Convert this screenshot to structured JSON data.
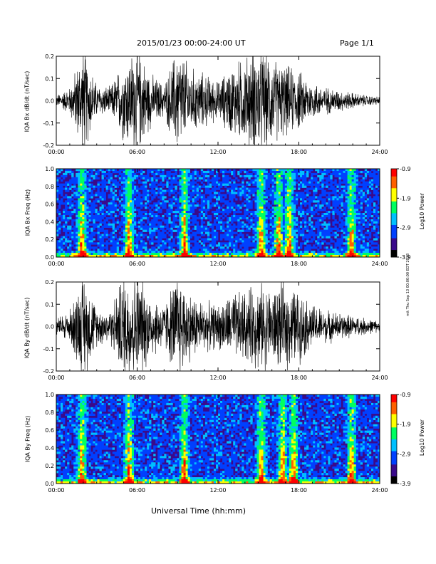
{
  "header": {
    "date_range": "2015/01/23  00:00-24:00 UT",
    "page": "Page 1/1"
  },
  "footer": {
    "xlabel": "Universal Time (hh:mm)",
    "side_note": "mit Thu Sep 13 00:00:00 EDT 2018"
  },
  "colors": {
    "trace": "#000000",
    "spectrogram_background": "#3a0a8a",
    "colormap": [
      "#000000",
      "#3a0a8a",
      "#0040ff",
      "#00c0ff",
      "#00ff60",
      "#ffff00",
      "#ff6000",
      "#ff0000"
    ]
  },
  "chart_data": [
    {
      "type": "line",
      "panel": "bx_waveform",
      "ylabel": "IQA Bx dB/dt (nT/sec)",
      "ylim": [
        -0.2,
        0.2
      ],
      "yticks": [
        "0.2",
        "0.1",
        "0.0",
        "-0.1",
        "-0.2"
      ],
      "xlim": [
        "00:00",
        "24:00"
      ],
      "xticks": [
        "00:00",
        "06:00",
        "12:00",
        "18:00",
        "24:00"
      ],
      "x": [
        "00:00",
        "01:00",
        "02:00",
        "03:00",
        "04:00",
        "05:00",
        "06:00",
        "07:00",
        "08:00",
        "09:00",
        "10:00",
        "11:00",
        "12:00",
        "13:00",
        "14:00",
        "15:00",
        "16:00",
        "17:00",
        "18:00",
        "19:00",
        "20:00",
        "21:00",
        "22:00",
        "23:00",
        "24:00"
      ],
      "amplitude": [
        0.02,
        0.05,
        0.2,
        0.06,
        0.05,
        0.15,
        0.2,
        0.1,
        0.06,
        0.2,
        0.12,
        0.1,
        0.07,
        0.13,
        0.16,
        0.2,
        0.16,
        0.13,
        0.11,
        0.07,
        0.05,
        0.04,
        0.03,
        0.02,
        0.015
      ]
    },
    {
      "type": "heatmap",
      "panel": "bx_spectrogram",
      "ylabel": "IQA Bx Freq (Hz)",
      "ylim": [
        0.0,
        1.0
      ],
      "yticks": [
        "1.0",
        "0.8",
        "0.6",
        "0.4",
        "0.2",
        "0.0"
      ],
      "xticks": [
        "00:00",
        "06:00",
        "12:00",
        "18:00",
        "24:00"
      ],
      "colorbar": {
        "label": "Log10 Power",
        "ticks": [
          "-0.9",
          "-1.9",
          "-2.9",
          "-3.9"
        ],
        "range": [
          -3.9,
          -0.9
        ]
      },
      "bursts_hours": [
        1.9,
        5.4,
        9.5,
        15.2,
        16.5,
        17.3,
        21.9
      ]
    },
    {
      "type": "line",
      "panel": "by_waveform",
      "ylabel": "IQA By dB/dt (nT/sec)",
      "ylim": [
        -0.2,
        0.2
      ],
      "yticks": [
        "0.2",
        "0.1",
        "0.0",
        "-0.1",
        "-0.2"
      ],
      "xlim": [
        "00:00",
        "24:00"
      ],
      "xticks": [
        "00:00",
        "06:00",
        "12:00",
        "18:00",
        "24:00"
      ],
      "x": [
        "00:00",
        "01:00",
        "02:00",
        "03:00",
        "04:00",
        "05:00",
        "06:00",
        "07:00",
        "08:00",
        "09:00",
        "10:00",
        "11:00",
        "12:00",
        "13:00",
        "14:00",
        "15:00",
        "16:00",
        "17:00",
        "18:00",
        "19:00",
        "20:00",
        "21:00",
        "22:00",
        "23:00",
        "24:00"
      ],
      "amplitude": [
        0.03,
        0.06,
        0.2,
        0.07,
        0.06,
        0.2,
        0.2,
        0.12,
        0.08,
        0.2,
        0.12,
        0.09,
        0.08,
        0.12,
        0.13,
        0.16,
        0.14,
        0.16,
        0.13,
        0.08,
        0.06,
        0.05,
        0.04,
        0.03,
        0.02
      ]
    },
    {
      "type": "heatmap",
      "panel": "by_spectrogram",
      "ylabel": "IQA By Freq (Hz)",
      "ylim": [
        0.0,
        1.0
      ],
      "yticks": [
        "1.0",
        "0.8",
        "0.6",
        "0.4",
        "0.2",
        "0.0"
      ],
      "xticks": [
        "00:00",
        "06:00",
        "12:00",
        "18:00",
        "24:00"
      ],
      "colorbar": {
        "label": "Log10 Power",
        "ticks": [
          "-0.9",
          "-1.9",
          "-2.9",
          "-3.9"
        ],
        "range": [
          -3.9,
          -0.9
        ]
      },
      "bursts_hours": [
        1.9,
        5.4,
        9.5,
        15.2,
        16.8,
        17.6,
        21.9
      ]
    }
  ]
}
